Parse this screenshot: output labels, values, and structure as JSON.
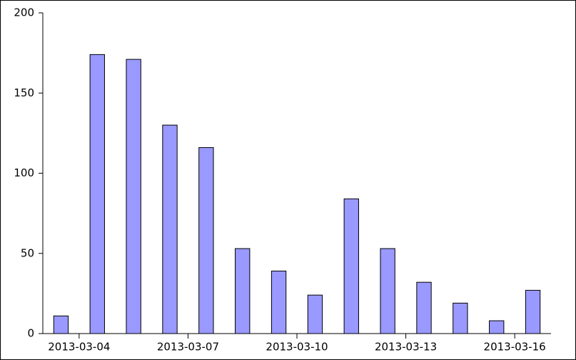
{
  "chart_data": {
    "type": "bar",
    "x": [
      "2013-03-04",
      "2013-03-05",
      "2013-03-06",
      "2013-03-07",
      "2013-03-08",
      "2013-03-09",
      "2013-03-10",
      "2013-03-11",
      "2013-03-12",
      "2013-03-13",
      "2013-03-14",
      "2013-03-15",
      "2013-03-16",
      "2013-03-17"
    ],
    "values": [
      11,
      174,
      171,
      130,
      116,
      53,
      39,
      24,
      84,
      53,
      32,
      19,
      8,
      27
    ],
    "color": "#9999ff",
    "xlim": [
      "2013-03-03",
      "2013-03-17"
    ],
    "xticks": [
      "2013-03-04",
      "2013-03-07",
      "2013-03-10",
      "2013-03-13",
      "2013-03-16"
    ],
    "ylim": [
      0,
      200
    ],
    "yticks": [
      0,
      50,
      100,
      150,
      200
    ],
    "grid": false
  }
}
